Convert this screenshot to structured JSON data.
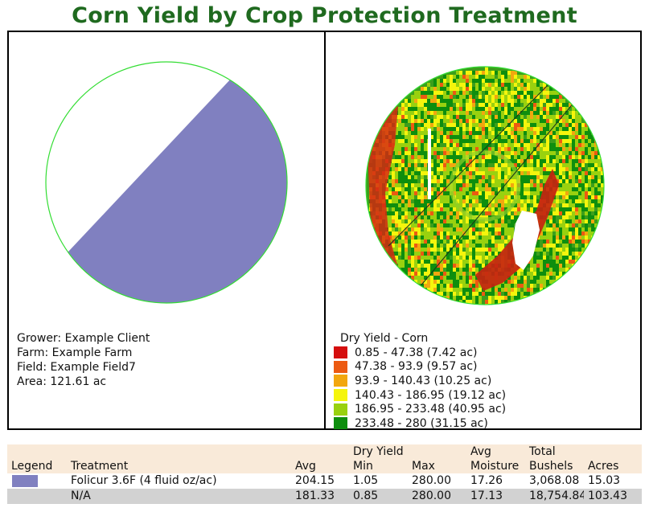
{
  "title": "Corn Yield by Crop Protection Treatment",
  "info": {
    "grower": "Grower: Example Client",
    "farm": "Farm: Example Farm",
    "field": "Field: Example Field7",
    "area": "Area: 121.61 ac"
  },
  "colors": {
    "title": "#1f6a1f",
    "treatment": "#8080c0",
    "field_outline": "#33dd33"
  },
  "legend": {
    "title": "Dry Yield - Corn",
    "items": [
      {
        "label": "0.85 - 47.38 (7.42 ac)",
        "color": "#d50e0e"
      },
      {
        "label": "47.38 - 93.9 (9.57 ac)",
        "color": "#ec5a12"
      },
      {
        "label": "93.9 - 140.43 (10.25 ac)",
        "color": "#f2a70f"
      },
      {
        "label": "140.43 - 186.95 (19.12 ac)",
        "color": "#f5f50c"
      },
      {
        "label": "186.95 - 233.48 (40.95 ac)",
        "color": "#99d10f"
      },
      {
        "label": "233.48 - 280 (31.15 ac)",
        "color": "#0e8e0e"
      }
    ]
  },
  "table": {
    "group_headers": {
      "dry_yield": "Dry Yield",
      "avg": "Avg",
      "total": "Total"
    },
    "headers": {
      "legend": "Legend",
      "treatment": "Treatment",
      "avg": "Avg",
      "min": "Min",
      "max": "Max",
      "moisture": "Moisture",
      "bushels": "Bushels",
      "acres": "Acres"
    },
    "rows": [
      {
        "treatment": "Folicur 3.6F (4 fluid oz/ac)",
        "avg": "204.15",
        "min": "1.05",
        "max": "280.00",
        "moisture": "17.26",
        "bushels": "3,068.08",
        "acres": "15.03",
        "swatch": "#8080c0"
      },
      {
        "treatment": "N/A",
        "avg": "181.33",
        "min": "0.85",
        "max": "280.00",
        "moisture": "17.13",
        "bushels": "18,754.84",
        "acres": "103.43",
        "swatch": ""
      }
    ]
  }
}
